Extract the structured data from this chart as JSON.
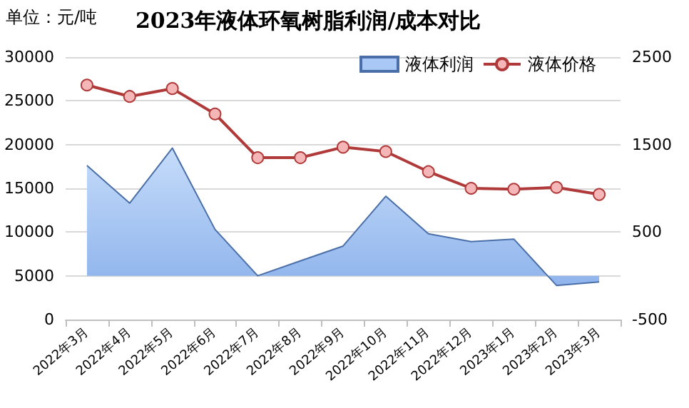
{
  "chart_data": {
    "type": "line",
    "title": "2023年液体环氧树脂利润/成本对比",
    "annotations": [
      "单位：元/吨"
    ],
    "categories": [
      "2022年3月",
      "2022年4月",
      "2022年5月",
      "2022年6月",
      "2022年7月",
      "2022年8月",
      "2022年9月",
      "2022年10月",
      "2022年11月",
      "2022年12月",
      "2023年1月",
      "2023年2月",
      "2023年3月"
    ],
    "series": [
      {
        "name": "液体利润",
        "type": "area",
        "axis": "y2",
        "color": "#4a6fa8",
        "marker": "none",
        "values": [
          1260,
          830,
          1460,
          530,
          0,
          170,
          340,
          910,
          480,
          390,
          420,
          -110,
          -70
        ]
      },
      {
        "name": "液体价格",
        "color": "#b03a3a",
        "marker": "circle",
        "values": [
          26800,
          25500,
          26400,
          23500,
          18500,
          18500,
          19700,
          19200,
          16900,
          15000,
          14900,
          15100,
          14300
        ]
      }
    ],
    "ylim": [
      0,
      30000
    ],
    "yticks": [
      0,
      5000,
      10000,
      15000,
      20000,
      25000,
      30000
    ],
    "y2lim": [
      -500,
      2500
    ],
    "y2ticks": [
      -500,
      500,
      1500,
      2500
    ],
    "grid": "y",
    "legend": "top right"
  }
}
